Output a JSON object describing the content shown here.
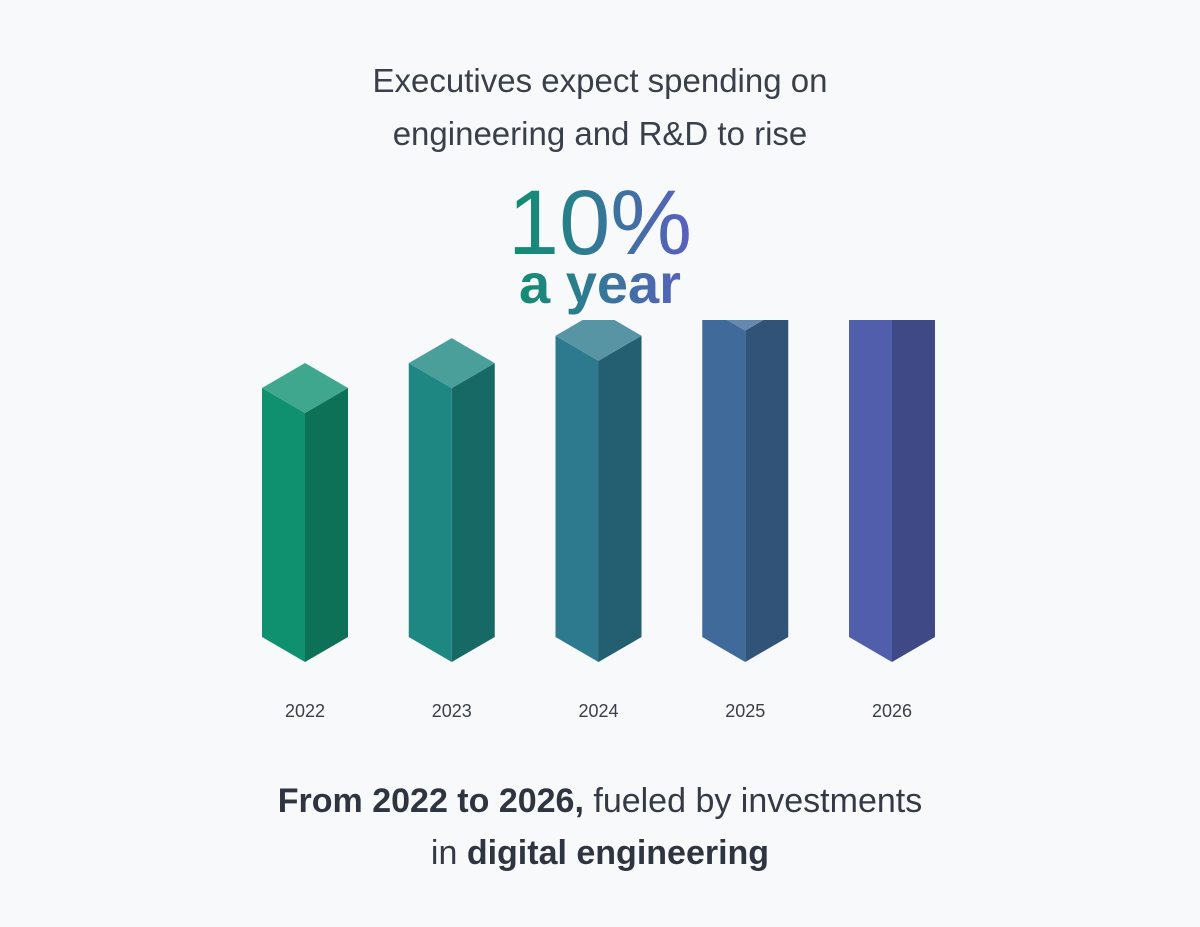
{
  "headline": {
    "line1": "Executives expect spending on",
    "line2": "engineering and R&D to rise"
  },
  "stat": {
    "value": "10%",
    "unit": "a year",
    "gradient_start": "#0f8f6f",
    "gradient_end": "#5a5fc0"
  },
  "chart_data": {
    "type": "bar",
    "categories": [
      "2022",
      "2023",
      "2024",
      "2025",
      "2026"
    ],
    "values": [
      100,
      110,
      121,
      133.1,
      146.41
    ],
    "title": "",
    "xlabel": "",
    "ylabel": "",
    "ylim": [
      0,
      150
    ],
    "grid": false,
    "colors": [
      "#0f9170",
      "#1e8782",
      "#2d7a8f",
      "#3f6a9a",
      "#505eab"
    ]
  },
  "footer": {
    "line1_bold": "From 2022 to 2026,",
    "line1_rest": " fueled by investments",
    "line2_lead": "in ",
    "line2_bold": "digital engineering"
  }
}
